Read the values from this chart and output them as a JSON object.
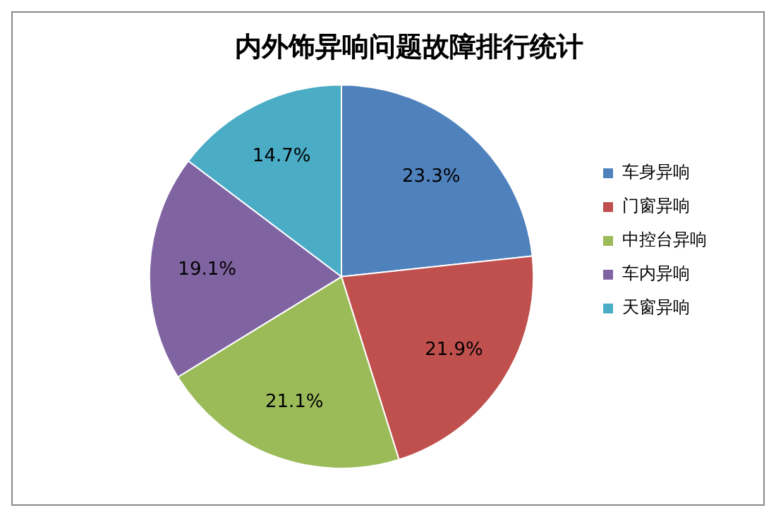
{
  "chart_data": {
    "type": "pie",
    "title": "内外饰异响问题故障排行统计",
    "categories": [
      "车身异响",
      "门窗异响",
      "中控台异响",
      "车内异响",
      "天窗异响"
    ],
    "values": [
      23.3,
      21.9,
      21.1,
      19.1,
      14.7
    ],
    "colors": [
      "#4f81bd",
      "#c0504d",
      "#9bbb59",
      "#8064a2",
      "#4bacc6"
    ],
    "value_labels": [
      "23.3%",
      "21.9%",
      "21.1%",
      "19.1%",
      "14.7%"
    ],
    "legend": "right"
  }
}
